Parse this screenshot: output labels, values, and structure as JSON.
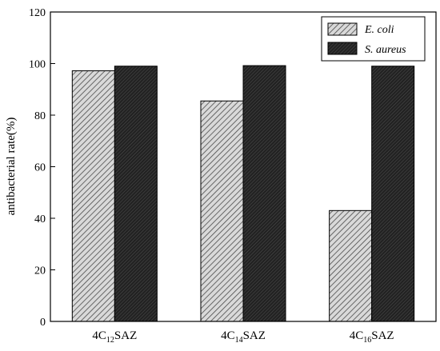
{
  "chart_data": {
    "type": "bar",
    "categories": [
      {
        "prefix": "4C",
        "sub": "12",
        "suffix": "SAZ"
      },
      {
        "prefix": "4C",
        "sub": "14",
        "suffix": "SAZ"
      },
      {
        "prefix": "4C",
        "sub": "16",
        "suffix": "SAZ"
      }
    ],
    "series": [
      {
        "name": "E. coli",
        "values": [
          97.2,
          85.5,
          43.0
        ],
        "pattern": "diagonal-hatch",
        "color": "#888888"
      },
      {
        "name": "S. aureus",
        "values": [
          99.0,
          99.2,
          99.0
        ],
        "pattern": "dense-dark-hatch",
        "color": "#2a2a2a"
      }
    ],
    "xlabel": "",
    "ylabel": "antibacterial rate(%)",
    "ylim": [
      0,
      120
    ],
    "yticks": [
      0,
      20,
      40,
      60,
      80,
      100,
      120
    ],
    "grid": false,
    "legend_position": "top-right"
  }
}
